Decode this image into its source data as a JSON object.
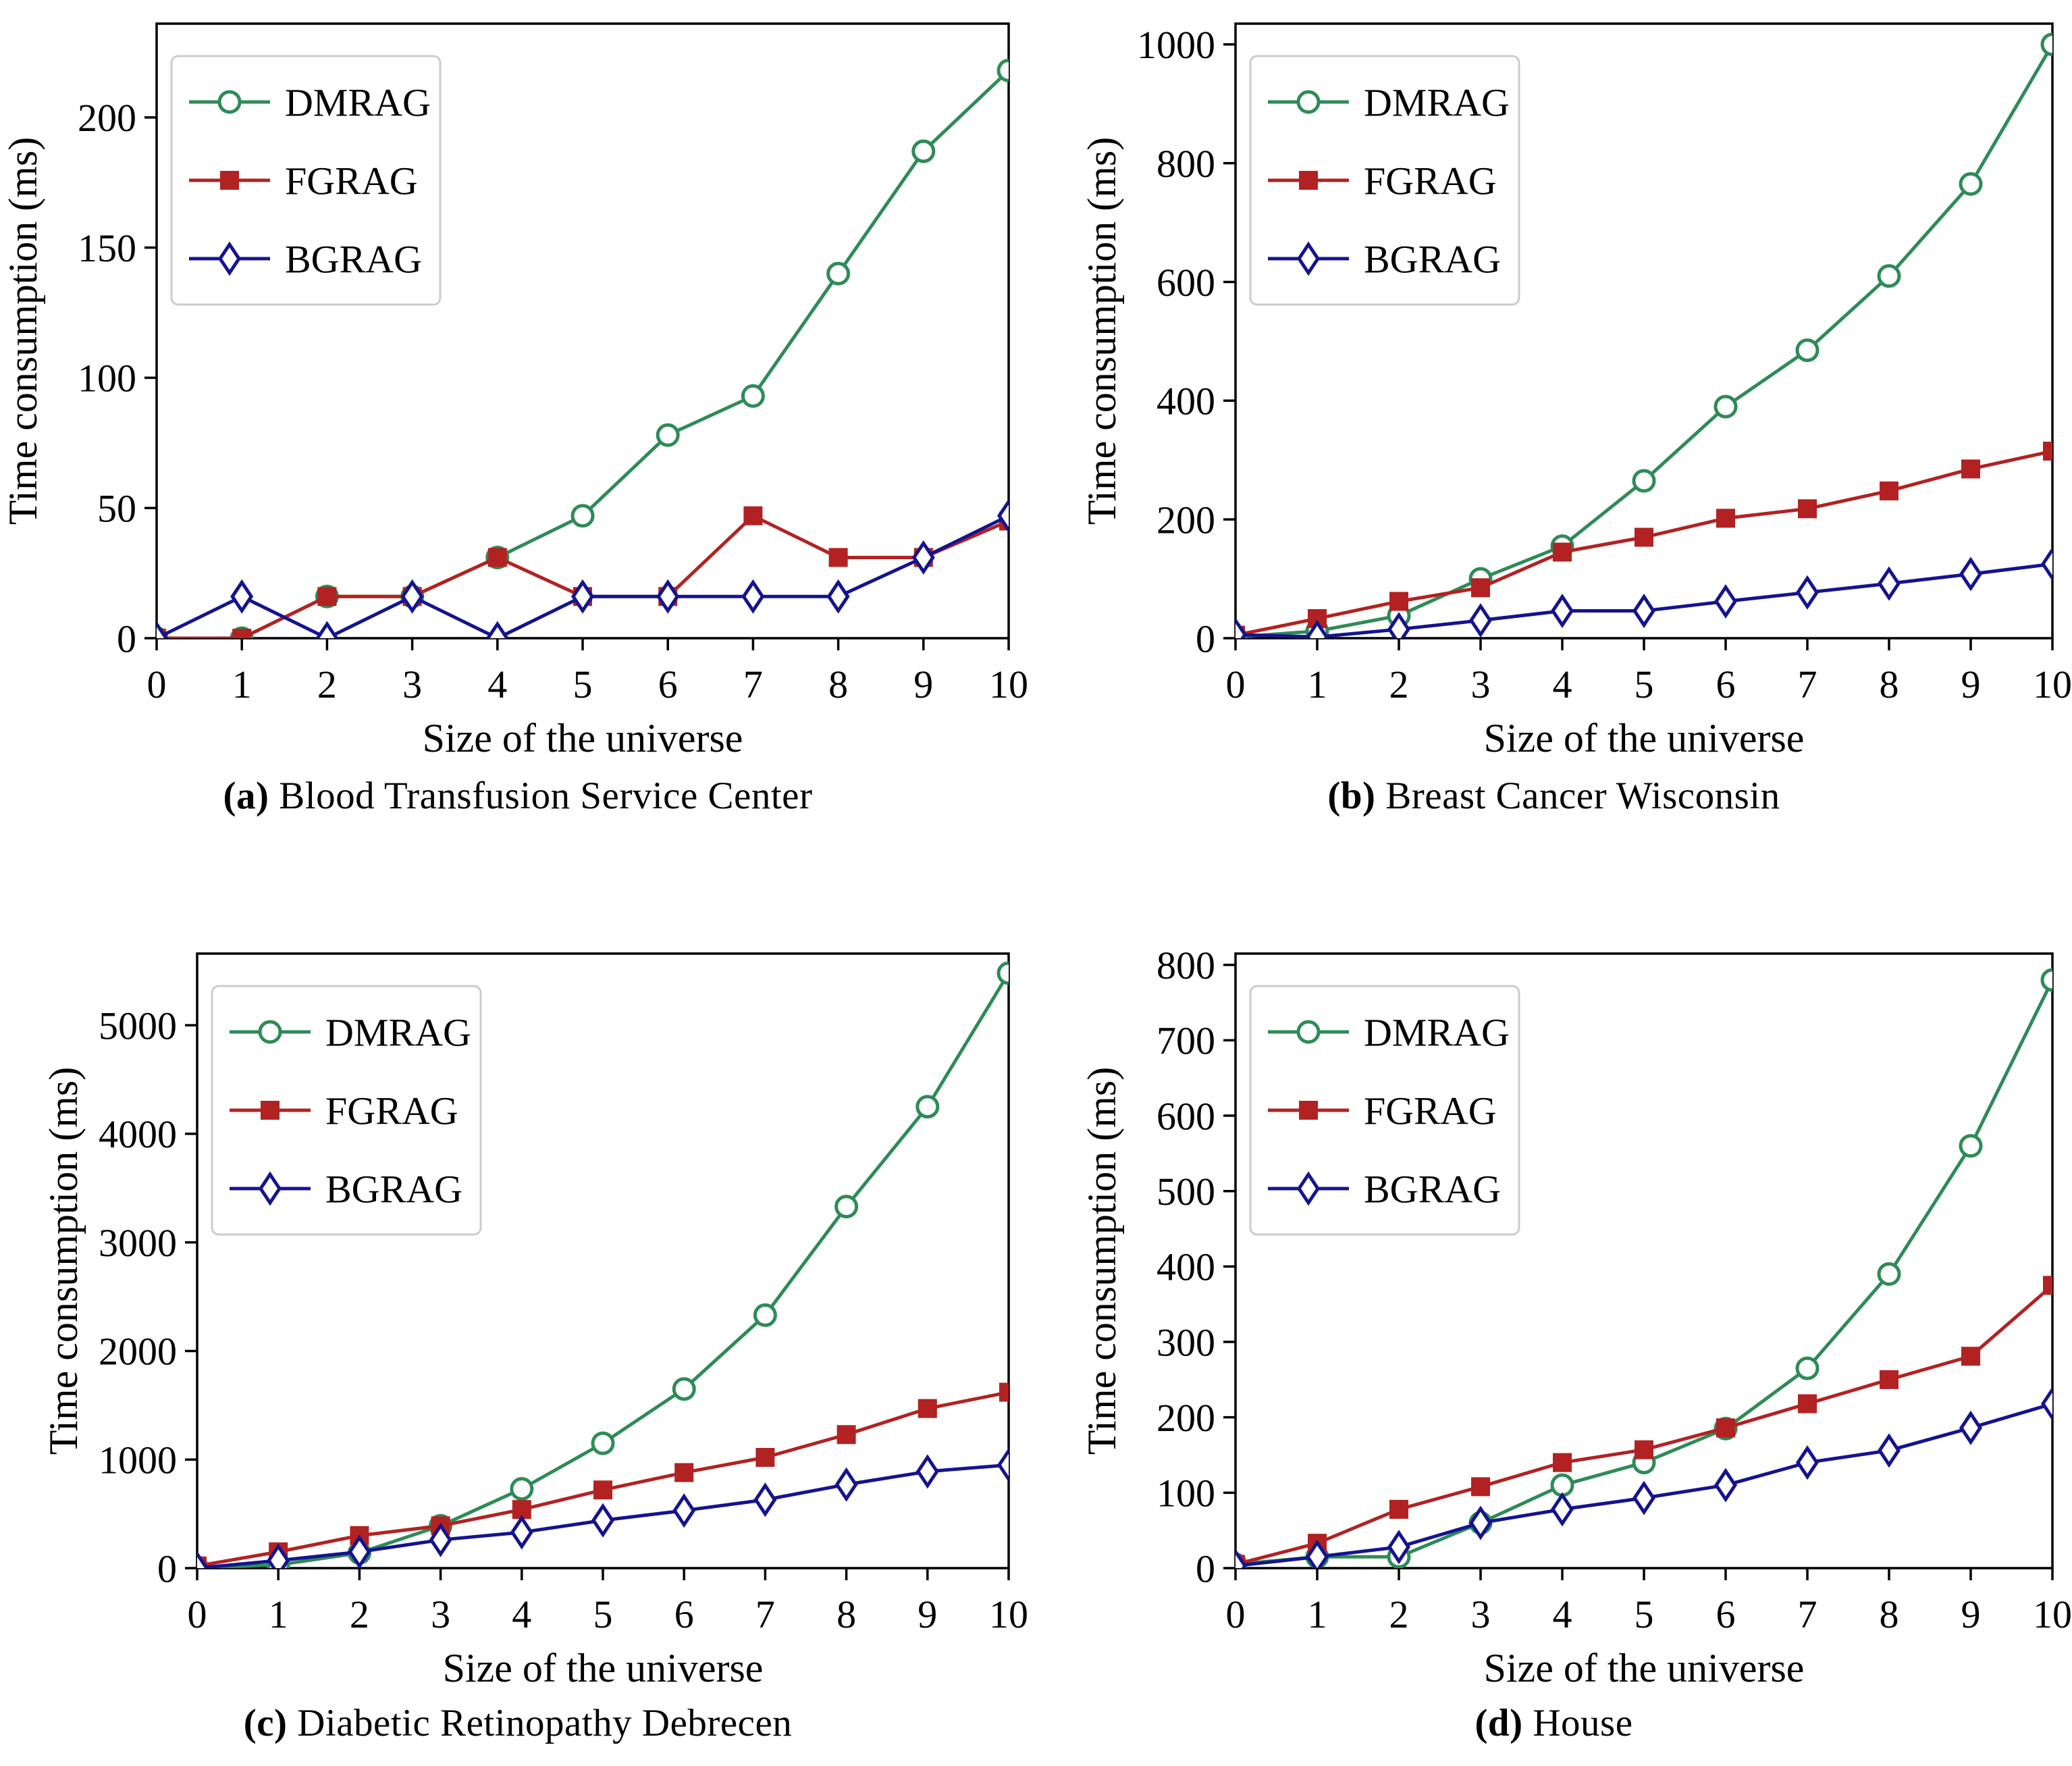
{
  "figure": {
    "background": "#ffffff",
    "xlabel": "Size of the universe",
    "ylabel": "Time consumption (ms)",
    "legend_position": "upper left",
    "legend_entries": [
      "DMRAG",
      "FGRAG",
      "BGRAG"
    ]
  },
  "series_style": {
    "DMRAG": {
      "color": "#2e8b57",
      "marker": "circle"
    },
    "FGRAG": {
      "color": "#b22222",
      "marker": "square"
    },
    "BGRAG": {
      "color": "#14148f",
      "marker": "diamond"
    }
  },
  "chart_data": [
    {
      "type": "line",
      "caption_label": "(a)",
      "caption": "Blood Transfusion Service Center",
      "xlabel": "Size of the universe",
      "ylabel": "Time consumption (ms)",
      "x": [
        0,
        1,
        2,
        3,
        4,
        5,
        6,
        7,
        8,
        9,
        10
      ],
      "xlim": [
        0,
        10
      ],
      "ylim": [
        0,
        236
      ],
      "xticks": [
        0,
        1,
        2,
        3,
        4,
        5,
        6,
        7,
        8,
        9,
        10
      ],
      "yticks": [
        0,
        50,
        100,
        150,
        200
      ],
      "grid": false,
      "legend_position": "upper left",
      "layout": {
        "left": 232,
        "right": 1494
      },
      "series": [
        {
          "name": "DMRAG",
          "values": [
            0,
            0,
            16,
            16,
            31,
            47,
            78,
            93,
            140,
            187,
            218
          ]
        },
        {
          "name": "FGRAG",
          "values": [
            0,
            0,
            16,
            16,
            31,
            16,
            16,
            47,
            31,
            31,
            45
          ]
        },
        {
          "name": "BGRAG",
          "values": [
            0,
            16,
            0,
            16,
            0,
            16,
            16,
            16,
            16,
            31,
            47
          ]
        }
      ]
    },
    {
      "type": "line",
      "caption_label": "(b)",
      "caption": "Breast Cancer Wisconsin",
      "xlabel": "Size of the universe",
      "ylabel": "Time consumption (ms)",
      "x": [
        0,
        1,
        2,
        3,
        4,
        5,
        6,
        7,
        8,
        9,
        10
      ],
      "xlim": [
        0,
        10
      ],
      "ylim": [
        0,
        1035
      ],
      "xticks": [
        0,
        1,
        2,
        3,
        4,
        5,
        6,
        7,
        8,
        9,
        10
      ],
      "yticks": [
        0,
        200,
        400,
        600,
        800,
        1000
      ],
      "grid": false,
      "legend_position": "upper left",
      "layout": {
        "left": 295,
        "right": 1505
      },
      "series": [
        {
          "name": "DMRAG",
          "values": [
            2,
            12,
            38,
            100,
            155,
            265,
            390,
            485,
            610,
            765,
            1000
          ]
        },
        {
          "name": "FGRAG",
          "values": [
            5,
            33,
            62,
            85,
            145,
            170,
            202,
            218,
            248,
            285,
            315
          ]
        },
        {
          "name": "BGRAG",
          "values": [
            6,
            2,
            15,
            30,
            46,
            46,
            62,
            77,
            92,
            108,
            125
          ]
        }
      ]
    },
    {
      "type": "line",
      "caption_label": "(c)",
      "caption": "Diabetic Retinopathy Debrecen",
      "xlabel": "Size of the universe",
      "ylabel": "Time consumption (ms)",
      "x": [
        0,
        1,
        2,
        3,
        4,
        5,
        6,
        7,
        8,
        9,
        10
      ],
      "xlim": [
        0,
        10
      ],
      "ylim": [
        0,
        5660
      ],
      "xticks": [
        0,
        1,
        2,
        3,
        4,
        5,
        6,
        7,
        8,
        9,
        10
      ],
      "yticks": [
        0,
        1000,
        2000,
        3000,
        4000,
        5000
      ],
      "grid": false,
      "legend_position": "upper left",
      "layout": {
        "left": 292,
        "right": 1494
      },
      "series": [
        {
          "name": "DMRAG",
          "values": [
            0,
            30,
            140,
            390,
            730,
            1150,
            1650,
            2330,
            3330,
            4250,
            5480
          ]
        },
        {
          "name": "FGRAG",
          "values": [
            20,
            150,
            300,
            390,
            540,
            720,
            880,
            1020,
            1230,
            1470,
            1620
          ]
        },
        {
          "name": "BGRAG",
          "values": [
            0,
            70,
            150,
            260,
            330,
            440,
            530,
            630,
            770,
            890,
            950
          ]
        }
      ]
    },
    {
      "type": "line",
      "caption_label": "(d)",
      "caption": "House",
      "xlabel": "Size of the universe",
      "ylabel": "Time consumption (ms)",
      "x": [
        0,
        1,
        2,
        3,
        4,
        5,
        6,
        7,
        8,
        9,
        10
      ],
      "xlim": [
        0,
        10
      ],
      "ylim": [
        0,
        815
      ],
      "xticks": [
        0,
        1,
        2,
        3,
        4,
        5,
        6,
        7,
        8,
        9,
        10
      ],
      "yticks": [
        0,
        100,
        200,
        300,
        400,
        500,
        600,
        700,
        800
      ],
      "grid": false,
      "legend_position": "upper left",
      "layout": {
        "left": 295,
        "right": 1505
      },
      "series": [
        {
          "name": "DMRAG",
          "values": [
            5,
            15,
            15,
            60,
            110,
            140,
            185,
            265,
            390,
            560,
            780
          ]
        },
        {
          "name": "FGRAG",
          "values": [
            5,
            33,
            78,
            108,
            140,
            157,
            186,
            218,
            250,
            281,
            375
          ]
        },
        {
          "name": "BGRAG",
          "values": [
            3,
            15,
            28,
            60,
            78,
            93,
            110,
            140,
            156,
            186,
            218
          ]
        }
      ]
    }
  ]
}
